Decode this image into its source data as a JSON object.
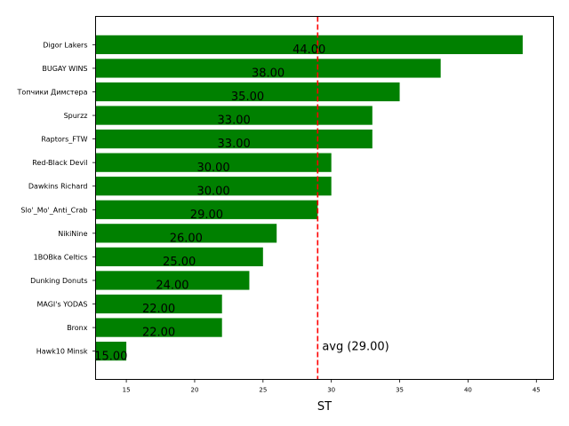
{
  "chart_data": {
    "type": "bar",
    "orientation": "horizontal",
    "categories": [
      "Digor Lakers",
      "BUGAY WINS",
      "Топчики Димстера",
      "Spurzz",
      "Raptors_FTW",
      "Red-Black Devil",
      "Dawkins Richard",
      "Slo'_Mo'_Anti_Crab",
      "NikiNine",
      "1BOBka Celtics",
      "Dunking Donuts",
      "MAGI's YODAS",
      "Bronx",
      "Hawk10 Minsk"
    ],
    "values": [
      44,
      38,
      35,
      33,
      33,
      30,
      30,
      29,
      26,
      25,
      24,
      22,
      22,
      15
    ],
    "value_labels": [
      "44.00",
      "38.00",
      "35.00",
      "33.00",
      "33.00",
      "30.00",
      "30.00",
      "29.00",
      "26.00",
      "25.00",
      "24.00",
      "22.00",
      "22.00",
      "15.00"
    ],
    "xlabel": "ST",
    "xlim": [
      12.75,
      46.25
    ],
    "xticks": [
      15,
      20,
      25,
      30,
      35,
      40,
      45
    ],
    "xtick_labels": [
      "15",
      "20",
      "25",
      "30",
      "35",
      "40",
      "45"
    ],
    "grid": false,
    "bar_color": "#008000",
    "average": {
      "value": 29,
      "label": "avg (29.00)",
      "color": "#ff0000",
      "style": "dashed"
    }
  }
}
